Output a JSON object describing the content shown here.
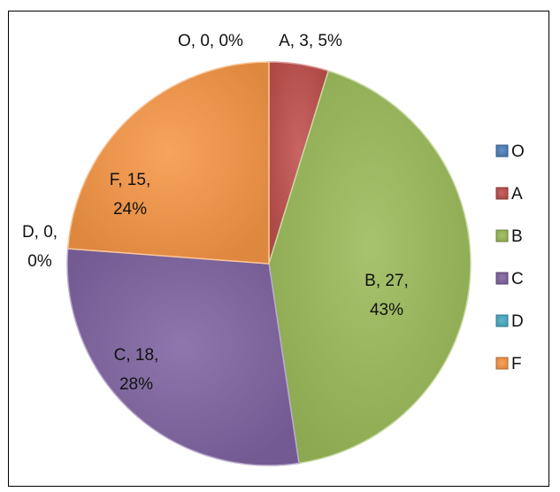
{
  "chart_data": {
    "type": "pie",
    "title": "",
    "start_angle_deg": 0,
    "direction": "clockwise",
    "legend_position": "right",
    "slices": [
      {
        "name": "O",
        "value": 0,
        "percent": "0%",
        "label_line1": "O, 0, 0%",
        "label_line2": "",
        "color": "#4f81bd"
      },
      {
        "name": "A",
        "value": 3,
        "percent": "5%",
        "label_line1": "A, 3, 5%",
        "label_line2": "",
        "color": "#c0504d"
      },
      {
        "name": "B",
        "value": 27,
        "percent": "43%",
        "label_line1": "B, 27,",
        "label_line2": "43%",
        "color": "#9bbb59"
      },
      {
        "name": "C",
        "value": 18,
        "percent": "28%",
        "label_line1": "C, 18,",
        "label_line2": "28%",
        "color": "#8064a2"
      },
      {
        "name": "D",
        "value": 0,
        "percent": "0%",
        "label_line1": "D, 0,",
        "label_line2": "0%",
        "color": "#4bacc6"
      },
      {
        "name": "F",
        "value": 15,
        "percent": "24%",
        "label_line1": "F, 15,",
        "label_line2": "24%",
        "color": "#f79646"
      }
    ],
    "legend": [
      "O",
      "A",
      "B",
      "C",
      "D",
      "F"
    ]
  }
}
